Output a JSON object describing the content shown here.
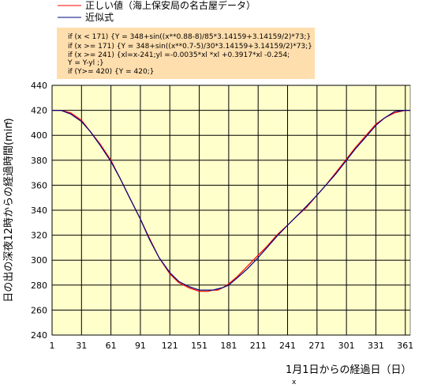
{
  "legend": [
    {
      "label": "正しい値（海上保安局の名古屋データ）",
      "color": "#ff0000"
    },
    {
      "label": "近似式",
      "color": "#000080"
    }
  ],
  "code_lines": [
    "if    (x < 171) {Y = 348+sin((x**0.88-8)/85*3.14159+3.14159/2)*73;}",
    "if    (x >= 171) {Y = 348+sin((x**0.7-5)/30*3.14159+3.14159/2)*73;}",
    "if    (x >= 241) {xl=x-241;yl =-0.0035*xl *xl +0.3917*xl -0.254;",
    "             Y = Y-yl ;}",
    "if    (Y>= 420) {Y = 420;}"
  ],
  "colors": {
    "plot_background": "#ffffcc",
    "code_box_background": "#ffdead",
    "series_true": "#ff0000",
    "series_approx": "#000080",
    "grid": "#000000"
  },
  "chart_data": {
    "type": "line",
    "xlabel": "1月1日からの経過日（日）",
    "x_letter": "x",
    "ylabel": "日の出の深夜12時からの経過時間(min)",
    "y_letter": "Y",
    "xlim": [
      1,
      366
    ],
    "ylim": [
      240,
      440
    ],
    "xticks": [
      1,
      31,
      61,
      91,
      121,
      151,
      181,
      211,
      241,
      271,
      301,
      331,
      361
    ],
    "yticks": [
      240,
      260,
      280,
      300,
      320,
      340,
      360,
      380,
      400,
      420,
      440
    ],
    "grid": true,
    "legend_position": "top-outside",
    "series": [
      {
        "name": "正しい値（海上保安局の名古屋データ）",
        "x": [
          1,
          10,
          20,
          31,
          40,
          50,
          61,
          70,
          80,
          91,
          100,
          110,
          121,
          130,
          140,
          151,
          160,
          165,
          170,
          175,
          181,
          190,
          200,
          211,
          220,
          230,
          241,
          250,
          260,
          271,
          280,
          290,
          301,
          310,
          320,
          331,
          340,
          350,
          361,
          366
        ],
        "y": [
          420,
          420,
          418,
          412,
          403,
          393,
          380,
          366,
          350,
          333,
          318,
          302,
          289,
          282,
          278,
          275,
          275,
          276,
          276,
          278,
          281,
          287,
          295,
          304,
          311,
          320,
          328,
          335,
          342,
          352,
          360,
          370,
          381,
          390,
          399,
          409,
          414,
          418,
          420,
          420
        ]
      },
      {
        "name": "近似式",
        "x": [
          1,
          10,
          20,
          31,
          40,
          50,
          61,
          70,
          80,
          91,
          100,
          110,
          121,
          130,
          140,
          151,
          160,
          165,
          170,
          175,
          181,
          190,
          200,
          211,
          220,
          230,
          241,
          250,
          260,
          271,
          280,
          290,
          301,
          310,
          320,
          331,
          340,
          350,
          361,
          366
        ],
        "y": [
          420,
          420,
          417,
          411,
          403,
          392,
          379,
          366,
          350,
          333,
          317,
          302,
          290,
          283,
          279,
          276,
          276,
          276,
          277,
          278,
          280,
          286,
          293,
          302,
          310,
          319,
          328,
          335,
          343,
          352,
          360,
          369,
          380,
          389,
          398,
          408,
          414,
          419,
          420,
          420
        ]
      }
    ]
  }
}
